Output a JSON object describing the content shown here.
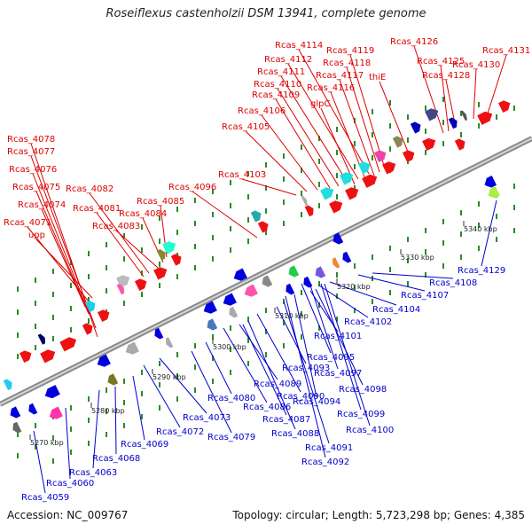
{
  "title": "Roseiflexus castenholzii DSM 13941, complete genome",
  "accession": "Accession: NC_009767",
  "topology": "Topology: circular; Length: 5,723,298 bp; Genes: 4,385",
  "colors": {
    "top_label": "#dd0000",
    "bottom_label": "#0000cc",
    "axis": "#999999",
    "tick": "#2a8a2a"
  },
  "kbp_markers": [
    "5270 kbp",
    "5280 kbp",
    "5290 kbp",
    "5300 kbp",
    "5310 kbp",
    "5320 kbp",
    "5330 kbp",
    "5340 kbp"
  ],
  "top_labels": [
    "Rcas_4078",
    "Rcas_4077",
    "Rcas_4076",
    "Rcas_4075",
    "Rcas_4074",
    "Rcas_4071",
    "upp",
    "Rcas_4082",
    "Rcas_4081",
    "Rcas_4084",
    "Rcas_4083",
    "Rcas_4085",
    "Rcas_4096",
    "Rcas_4103",
    "Rcas_4105",
    "Rcas_4106",
    "Rcas_4109",
    "Rcas_4110",
    "Rcas_4111",
    "Rcas_4112",
    "Rcas_4114",
    "Rcas_4119",
    "Rcas_4118",
    "Rcas_4117",
    "Rcas_4116",
    "glpC",
    "thiE",
    "Rcas_4126",
    "Rcas_4125",
    "Rcas_4128",
    "Rcas_4130",
    "Rcas_4131"
  ],
  "bottom_labels": [
    "Rcas_4129",
    "Rcas_4108",
    "Rcas_4107",
    "Rcas_4104",
    "Rcas_4102",
    "Rcas_4101",
    "Rcas_4095",
    "Rcas_4097",
    "Rcas_4098",
    "Rcas_4093",
    "Rcas_4094",
    "Rcas_4099",
    "Rcas_4100",
    "Rcas_4090",
    "Rcas_4089",
    "Rcas_4086",
    "Rcas_4087",
    "Rcas_4088",
    "Rcas_4091",
    "Rcas_4092",
    "Rcas_4080",
    "Rcas_4079",
    "Rcas_4073",
    "Rcas_4072",
    "Rcas_4069",
    "Rcas_4068",
    "Rcas_4063",
    "Rcas_4060",
    "Rcas_4059"
  ]
}
